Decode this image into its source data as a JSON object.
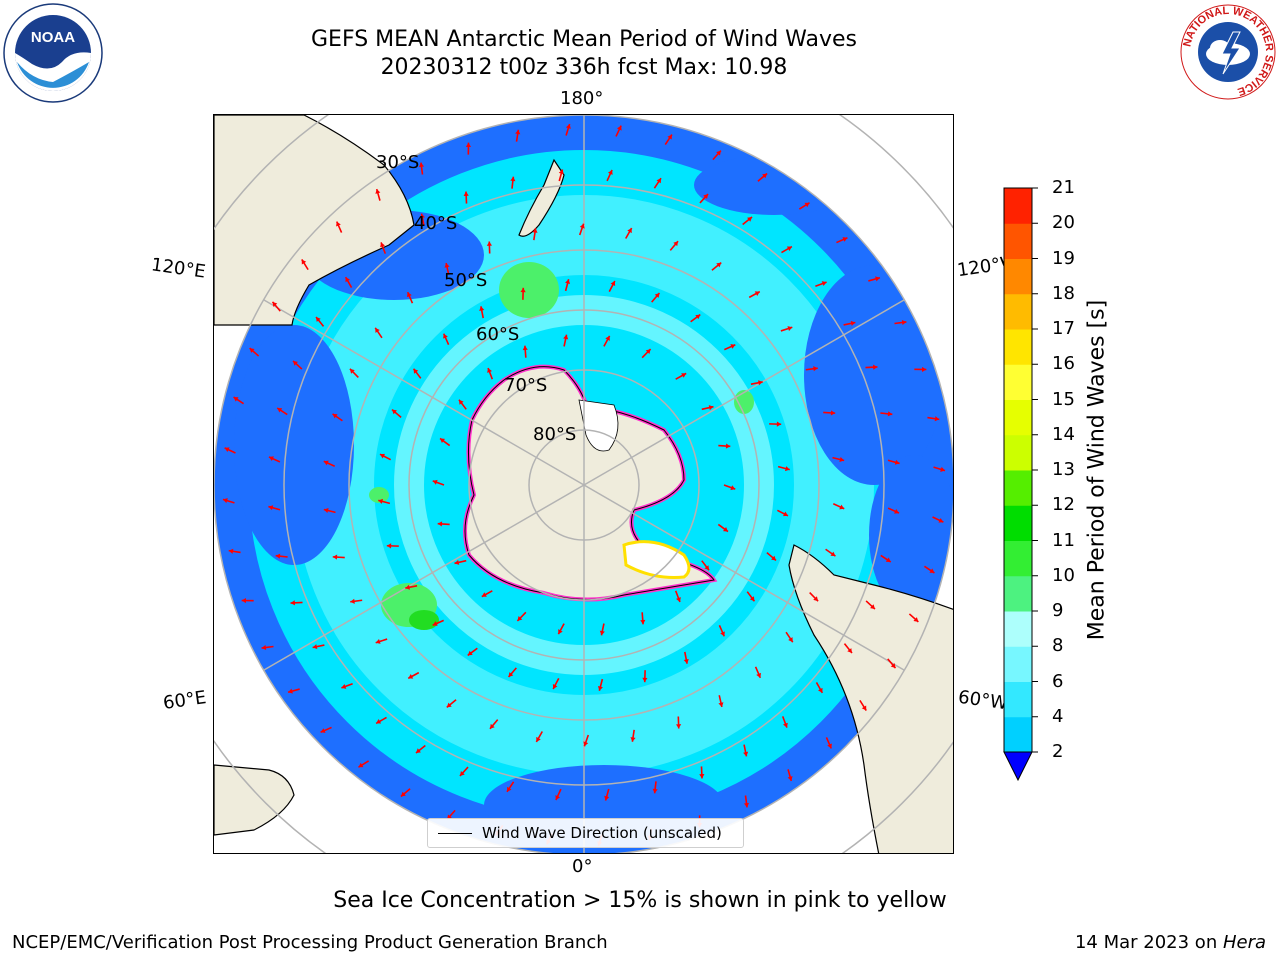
{
  "title": {
    "line1": "GEFS MEAN Antarctic Mean Period of Wind Waves",
    "line2": "20230312 t00z 336h fcst   Max: 10.98"
  },
  "map": {
    "projection": "south-polar-stereographic",
    "longitude_labels": {
      "top": "180°",
      "bottom": "0°",
      "upper_left": "120°E",
      "upper_right": "120°W",
      "lower_left": "60°E",
      "lower_right": "60°W"
    },
    "latitude_labels": [
      "30°S",
      "40°S",
      "50°S",
      "60°S",
      "70°S",
      "80°S"
    ],
    "legend": "Wind Wave Direction (unscaled)",
    "colors": {
      "land": "#efecdc",
      "c2_4": "#1e6fff",
      "c4_6": "#00e5ff",
      "c6_8": "#4cf2ff",
      "c8_9": "#a6ffff",
      "c9_10": "#4cf06a",
      "arrow": "#ff0000",
      "sea_ice_pink": "#ff33cc",
      "sea_ice_yellow": "#ffe000"
    }
  },
  "colorbar": {
    "label": "Mean Period of Wind Waves [s]",
    "ticks": [
      "2",
      "4",
      "6",
      "8",
      "9",
      "10",
      "11",
      "12",
      "13",
      "14",
      "15",
      "16",
      "17",
      "18",
      "19",
      "20",
      "21"
    ],
    "colors": [
      "#0060ff",
      "#00d0ff",
      "#33e8ff",
      "#77f7ff",
      "#adfffc",
      "#4df280",
      "#33ee33",
      "#00dd00",
      "#55ee00",
      "#ccff00",
      "#e6ff00",
      "#ffff33",
      "#ffe500",
      "#ffbb00",
      "#ff8800",
      "#ff5500",
      "#ff2200",
      "#ff0000"
    ]
  },
  "caption": "Sea Ice Concentration > 15% is shown in pink to yellow",
  "footer": {
    "left": "NCEP/EMC/Verification Post Processing Product Generation Branch",
    "right_date": "14 Mar 2023 on ",
    "right_machine": "Hera"
  },
  "logos": {
    "noaa_text": "NOAA",
    "nws_ring": "NATIONAL WEATHER SERVICE"
  }
}
